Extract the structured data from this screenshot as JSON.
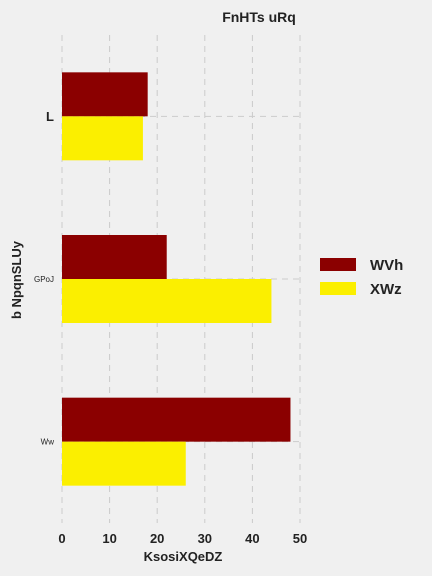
{
  "chart_data": {
    "type": "bar",
    "orientation": "horizontal",
    "title": "FnHTs  uRq",
    "xlabel": "KsosiXQeDZ",
    "ylabel": "b NpqnSLUy",
    "categories": [
      "L",
      "GPoJ",
      "Ww"
    ],
    "series": [
      {
        "name": "WVh",
        "values": [
          18,
          22,
          48
        ],
        "color": "#8b0000"
      },
      {
        "name": "XWz",
        "values": [
          17,
          44,
          26
        ],
        "color": "#fbef00"
      }
    ],
    "xlim": [
      0,
      50
    ],
    "xticks": [
      0,
      10,
      20,
      30,
      40,
      50
    ],
    "grid": true,
    "legend_position": "right"
  }
}
